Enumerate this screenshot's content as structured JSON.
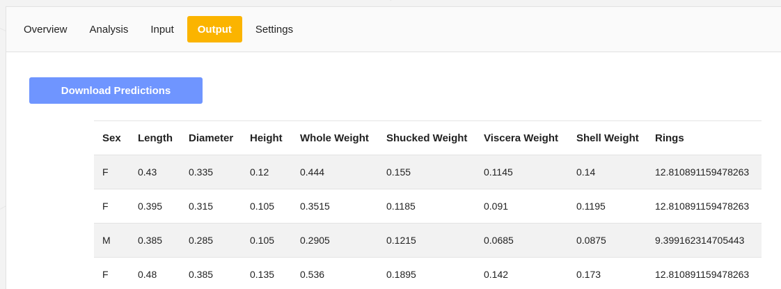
{
  "tabs": [
    {
      "label": "Overview",
      "active": false
    },
    {
      "label": "Analysis",
      "active": false
    },
    {
      "label": "Input",
      "active": false
    },
    {
      "label": "Output",
      "active": true
    },
    {
      "label": "Settings",
      "active": false
    }
  ],
  "download_button": {
    "label": "Download Predictions"
  },
  "table": {
    "columns": [
      "Sex",
      "Length",
      "Diameter",
      "Height",
      "Whole Weight",
      "Shucked Weight",
      "Viscera Weight",
      "Shell Weight",
      "Rings"
    ],
    "rows": [
      [
        "F",
        "0.43",
        "0.335",
        "0.12",
        "0.444",
        "0.155",
        "0.1145",
        "0.14",
        "12.810891159478263"
      ],
      [
        "F",
        "0.395",
        "0.315",
        "0.105",
        "0.3515",
        "0.1185",
        "0.091",
        "0.1195",
        "12.810891159478263"
      ],
      [
        "M",
        "0.385",
        "0.285",
        "0.105",
        "0.2905",
        "0.1215",
        "0.0685",
        "0.0875",
        "9.399162314705443"
      ],
      [
        "F",
        "0.48",
        "0.385",
        "0.135",
        "0.536",
        "0.1895",
        "0.142",
        "0.173",
        "12.810891159478263"
      ]
    ]
  },
  "colors": {
    "active_tab": "#fbb400",
    "button": "#6f95ff",
    "stripe": "#f2f2f2"
  }
}
